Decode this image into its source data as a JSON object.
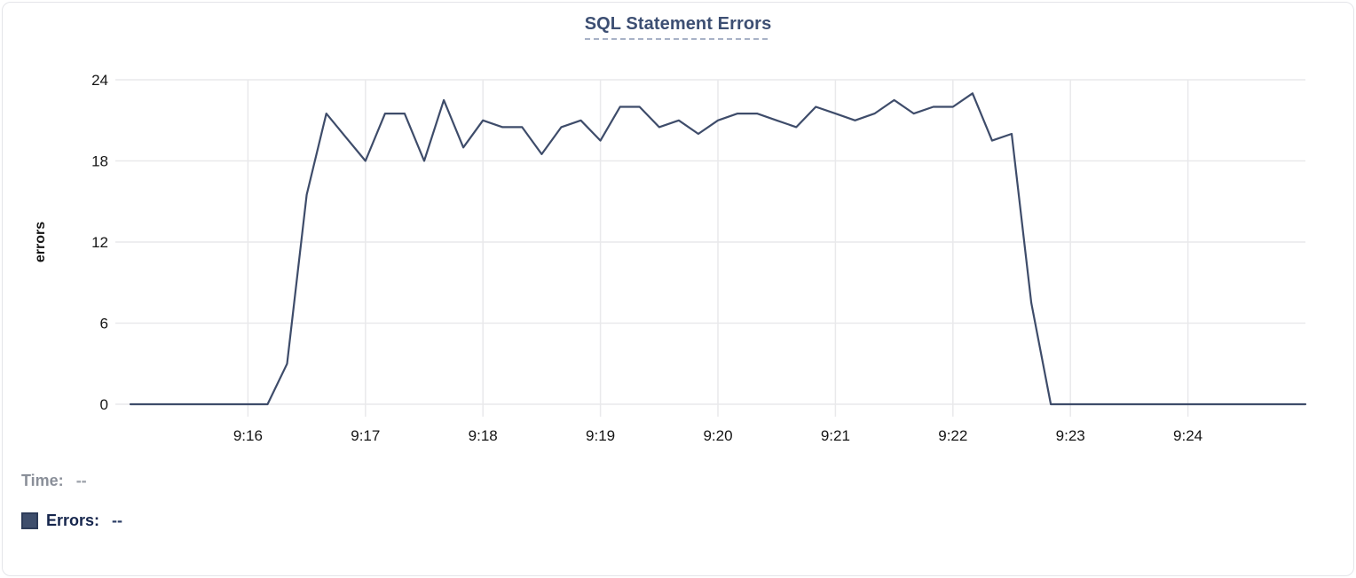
{
  "title": "SQL Statement Errors",
  "legend": {
    "time_label": "Time:",
    "time_value": "--",
    "errors_label": "Errors:",
    "errors_value": "--"
  },
  "colors": {
    "line": "#3e4c6a",
    "title": "#3d4f73",
    "title_underline": "#a8b2c7",
    "grid": "#e9e9eb",
    "tick_text": "#151515",
    "axis_label": "#0a0a0a",
    "legend_time": "#8a8f99",
    "legend_errors": "#16264d",
    "swatch_fill": "#3e4e6c",
    "card_border": "#e4e5e9"
  },
  "chart_data": {
    "type": "line",
    "title": "SQL Statement Errors",
    "xlabel": "",
    "ylabel": "errors",
    "ylim": [
      0,
      24
    ],
    "yticks": [
      0,
      6,
      12,
      18,
      24
    ],
    "xtick_labels": [
      "9:16",
      "9:17",
      "9:18",
      "9:19",
      "9:20",
      "9:21",
      "9:22",
      "9:23",
      "9:24"
    ],
    "x_range": [
      "9:15:00",
      "9:25:00"
    ],
    "grid": true,
    "legend_position": "below-as-hover-readout",
    "series": [
      {
        "name": "Errors",
        "color": "#3e4c6a",
        "times": [
          "9:15:00",
          "9:15:10",
          "9:15:20",
          "9:15:30",
          "9:15:40",
          "9:15:50",
          "9:16:00",
          "9:16:10",
          "9:16:20",
          "9:16:30",
          "9:16:40",
          "9:16:50",
          "9:17:00",
          "9:17:10",
          "9:17:20",
          "9:17:30",
          "9:17:40",
          "9:17:50",
          "9:18:00",
          "9:18:10",
          "9:18:20",
          "9:18:30",
          "9:18:40",
          "9:18:50",
          "9:19:00",
          "9:19:10",
          "9:19:20",
          "9:19:30",
          "9:19:40",
          "9:19:50",
          "9:20:00",
          "9:20:10",
          "9:20:20",
          "9:20:30",
          "9:20:40",
          "9:20:50",
          "9:21:00",
          "9:21:10",
          "9:21:20",
          "9:21:30",
          "9:21:40",
          "9:21:50",
          "9:22:00",
          "9:22:10",
          "9:22:20",
          "9:22:30",
          "9:22:40",
          "9:22:50",
          "9:23:00",
          "9:23:10",
          "9:23:20",
          "9:23:30",
          "9:23:40",
          "9:23:50",
          "9:24:00",
          "9:24:10",
          "9:24:20",
          "9:24:30",
          "9:24:40",
          "9:24:50",
          "9:25:00"
        ],
        "values": [
          0,
          0,
          0,
          0,
          0,
          0,
          0,
          0,
          3,
          15.5,
          21.5,
          19.75,
          18,
          21.5,
          21.5,
          18,
          22.5,
          19,
          21,
          20.5,
          20.5,
          18.5,
          20.5,
          21,
          19.5,
          22,
          22,
          20.5,
          21,
          20,
          21,
          21.5,
          21.5,
          21,
          20.5,
          22,
          21.5,
          21,
          21.5,
          22.5,
          21.5,
          22,
          22,
          23,
          19.5,
          20,
          7.5,
          0,
          0,
          0,
          0,
          0,
          0,
          0,
          0,
          0,
          0,
          0,
          0,
          0,
          0
        ]
      }
    ]
  }
}
